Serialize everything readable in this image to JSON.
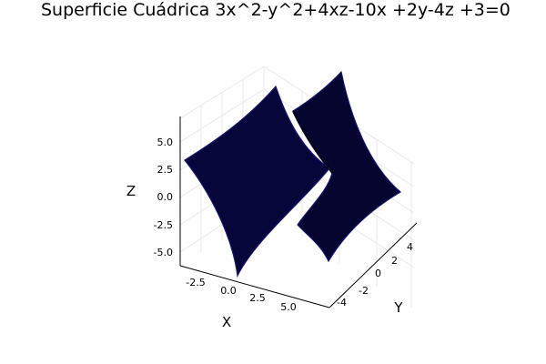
{
  "chart_data": {
    "type": "surface",
    "title": "Superficie Cuádrica 3x^2-y^2+4xz-10x +2y-4z +3=0",
    "xlabel": "X",
    "ylabel": "Y",
    "zlabel": "Z",
    "x_ticks": [
      "-2.5",
      "0.0",
      "2.5",
      "5.0"
    ],
    "y_ticks": [
      "-4",
      "-2",
      "0",
      "2",
      "4"
    ],
    "z_ticks": [
      "5.0",
      "2.5",
      "0.0",
      "-2.5",
      "-5.0"
    ],
    "xlim": [
      -3.5,
      6.5
    ],
    "ylim": [
      -5,
      5
    ],
    "zlim": [
      -6.5,
      7
    ],
    "grid": true,
    "legend": "none",
    "surface_color": "#06063a",
    "edge_color": "#1a1a7a"
  }
}
